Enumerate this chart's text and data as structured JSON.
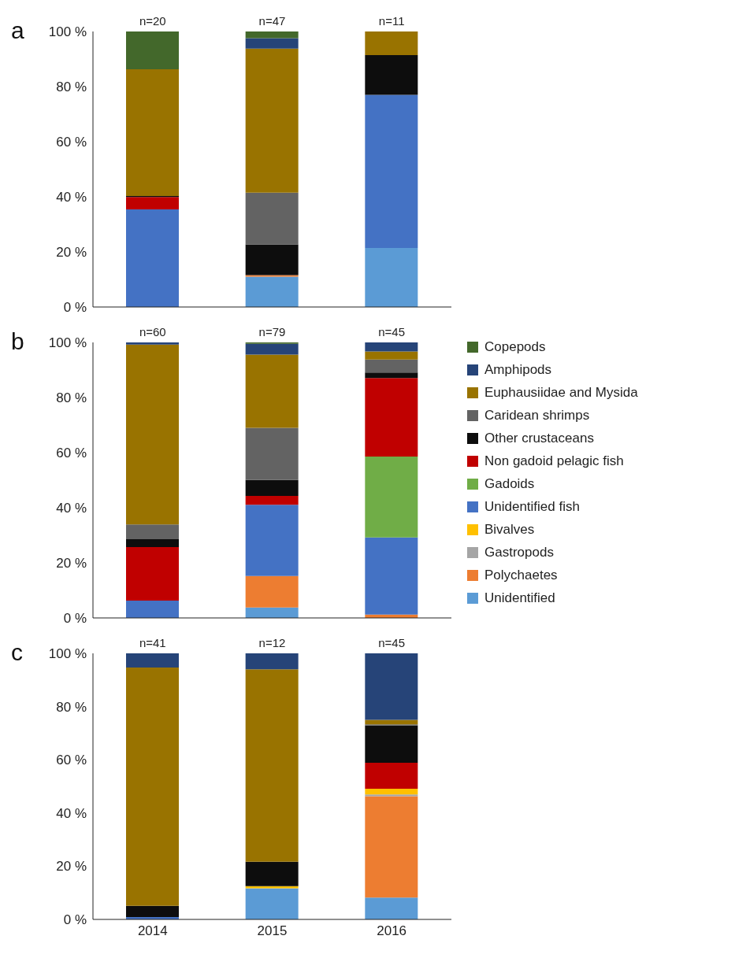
{
  "chart_data": [
    {
      "type": "bar",
      "title": "a",
      "stacked": true,
      "categories": [
        "2014",
        "2015",
        "2016"
      ],
      "tick_labels": "y",
      "legend": false,
      "ylim": [
        0,
        100
      ],
      "yticks": [
        {
          "value": 0,
          "label": "0 %"
        },
        {
          "value": 20,
          "label": "20 %"
        },
        {
          "value": 40,
          "label": "40 %"
        },
        {
          "value": 60,
          "label": "60 %"
        },
        {
          "value": 80,
          "label": "80 %"
        },
        {
          "value": 100,
          "label": "100 %"
        }
      ],
      "annotations": [
        {
          "text": "n=20",
          "x": "2014",
          "y": 100
        },
        {
          "text": "n=47",
          "x": "2015",
          "y": 100
        },
        {
          "text": "n=11",
          "x": "2016",
          "y": 100
        }
      ],
      "series": [
        {
          "color": "#5b9bd5",
          "values": [
            0,
            11,
            21.4
          ]
        },
        {
          "color": "#ed7d31",
          "values": [
            0,
            0.6,
            0
          ]
        },
        {
          "color": "#4472c4",
          "values": [
            35.4,
            0,
            55.6
          ]
        },
        {
          "color": "#c00000",
          "values": [
            4.5,
            0,
            0
          ]
        },
        {
          "color": "#0d0d0d",
          "values": [
            0.4,
            11.1,
            14.4
          ]
        },
        {
          "color": "#636363",
          "values": [
            0,
            18.8,
            0
          ]
        },
        {
          "color": "#997300",
          "values": [
            46,
            52.3,
            8.6
          ]
        },
        {
          "color": "#264478",
          "values": [
            0,
            3.8,
            0
          ]
        },
        {
          "color": "#43682b",
          "values": [
            13.7,
            2.4,
            0
          ]
        }
      ]
    },
    {
      "type": "bar",
      "title": "b",
      "stacked": true,
      "categories": [
        "2014",
        "2015",
        "2016"
      ],
      "tick_labels": "y",
      "legend": "right",
      "ylim": [
        0,
        100
      ],
      "yticks": [
        {
          "value": 0,
          "label": "0 %"
        },
        {
          "value": 20,
          "label": "20 %"
        },
        {
          "value": 40,
          "label": "40 %"
        },
        {
          "value": 60,
          "label": "60 %"
        },
        {
          "value": 80,
          "label": "80 %"
        },
        {
          "value": 100,
          "label": "100 %"
        }
      ],
      "annotations": [
        {
          "text": "n=60",
          "x": "2014",
          "y": 100
        },
        {
          "text": "n=79",
          "x": "2015",
          "y": 100
        },
        {
          "text": "n=45",
          "x": "2016",
          "y": 100
        }
      ],
      "series": [
        {
          "name": "Unidentified",
          "color": "#5b9bd5",
          "values": [
            0,
            3.8,
            0
          ]
        },
        {
          "name": "Polychaetes",
          "color": "#ed7d31",
          "values": [
            0,
            11.4,
            1.2
          ]
        },
        {
          "name": "Gastropods",
          "color": "#a5a5a5",
          "values": [
            0,
            0,
            0
          ]
        },
        {
          "name": "Bivalves",
          "color": "#ffc000",
          "values": [
            0,
            0,
            0
          ]
        },
        {
          "name": "Unidentified fish",
          "color": "#4472c4",
          "values": [
            6.3,
            25.9,
            28
          ]
        },
        {
          "name": "Gadoids",
          "color": "#70ad47",
          "values": [
            0,
            0,
            29.4
          ]
        },
        {
          "name": "Non gadoid pelagic fish",
          "color": "#c00000",
          "values": [
            19.4,
            3.2,
            28.5
          ]
        },
        {
          "name": "Other crustaceans",
          "color": "#0d0d0d",
          "values": [
            2.9,
            5.8,
            2
          ]
        },
        {
          "name": "Caridean shrimps",
          "color": "#636363",
          "values": [
            5.3,
            18.9,
            4.7
          ]
        },
        {
          "name": "Euphausiidae and Mysida",
          "color": "#997300",
          "values": [
            65.3,
            26.6,
            2.9
          ]
        },
        {
          "name": "Amphipods",
          "color": "#264478",
          "values": [
            0.8,
            3.9,
            3.3
          ]
        },
        {
          "name": "Copepods",
          "color": "#43682b",
          "values": [
            0,
            0.5,
            0
          ]
        }
      ]
    },
    {
      "type": "bar",
      "title": "c",
      "stacked": true,
      "categories": [
        "2014",
        "2015",
        "2016"
      ],
      "legend": false,
      "ylim": [
        0,
        100
      ],
      "yticks": [
        {
          "value": 0,
          "label": "0 %"
        },
        {
          "value": 20,
          "label": "20 %"
        },
        {
          "value": 40,
          "label": "40 %"
        },
        {
          "value": 60,
          "label": "60 %"
        },
        {
          "value": 80,
          "label": "80 %"
        },
        {
          "value": 100,
          "label": "100 %"
        }
      ],
      "annotations": [
        {
          "text": "n=41",
          "x": "2014",
          "y": 100
        },
        {
          "text": "n=12",
          "x": "2015",
          "y": 100
        },
        {
          "text": "n=45",
          "x": "2016",
          "y": 100
        }
      ],
      "series": [
        {
          "color": "#5b9bd5",
          "values": [
            0,
            11.7,
            8.2
          ]
        },
        {
          "color": "#ed7d31",
          "values": [
            0,
            0,
            38.1
          ]
        },
        {
          "color": "#a5a5a5",
          "values": [
            0,
            0,
            0.7
          ]
        },
        {
          "color": "#ffc000",
          "values": [
            0,
            0.8,
            2.1
          ]
        },
        {
          "color": "#4472c4",
          "values": [
            0.9,
            0,
            0
          ]
        },
        {
          "color": "#c00000",
          "values": [
            0,
            0,
            9.8
          ]
        },
        {
          "color": "#0d0d0d",
          "values": [
            4.2,
            9.2,
            14
          ]
        },
        {
          "color": "#636363",
          "values": [
            0,
            0,
            0.4
          ]
        },
        {
          "color": "#997300",
          "values": [
            89.6,
            72.3,
            1.7
          ]
        },
        {
          "color": "#264478",
          "values": [
            5.3,
            6,
            25
          ]
        }
      ]
    }
  ]
}
